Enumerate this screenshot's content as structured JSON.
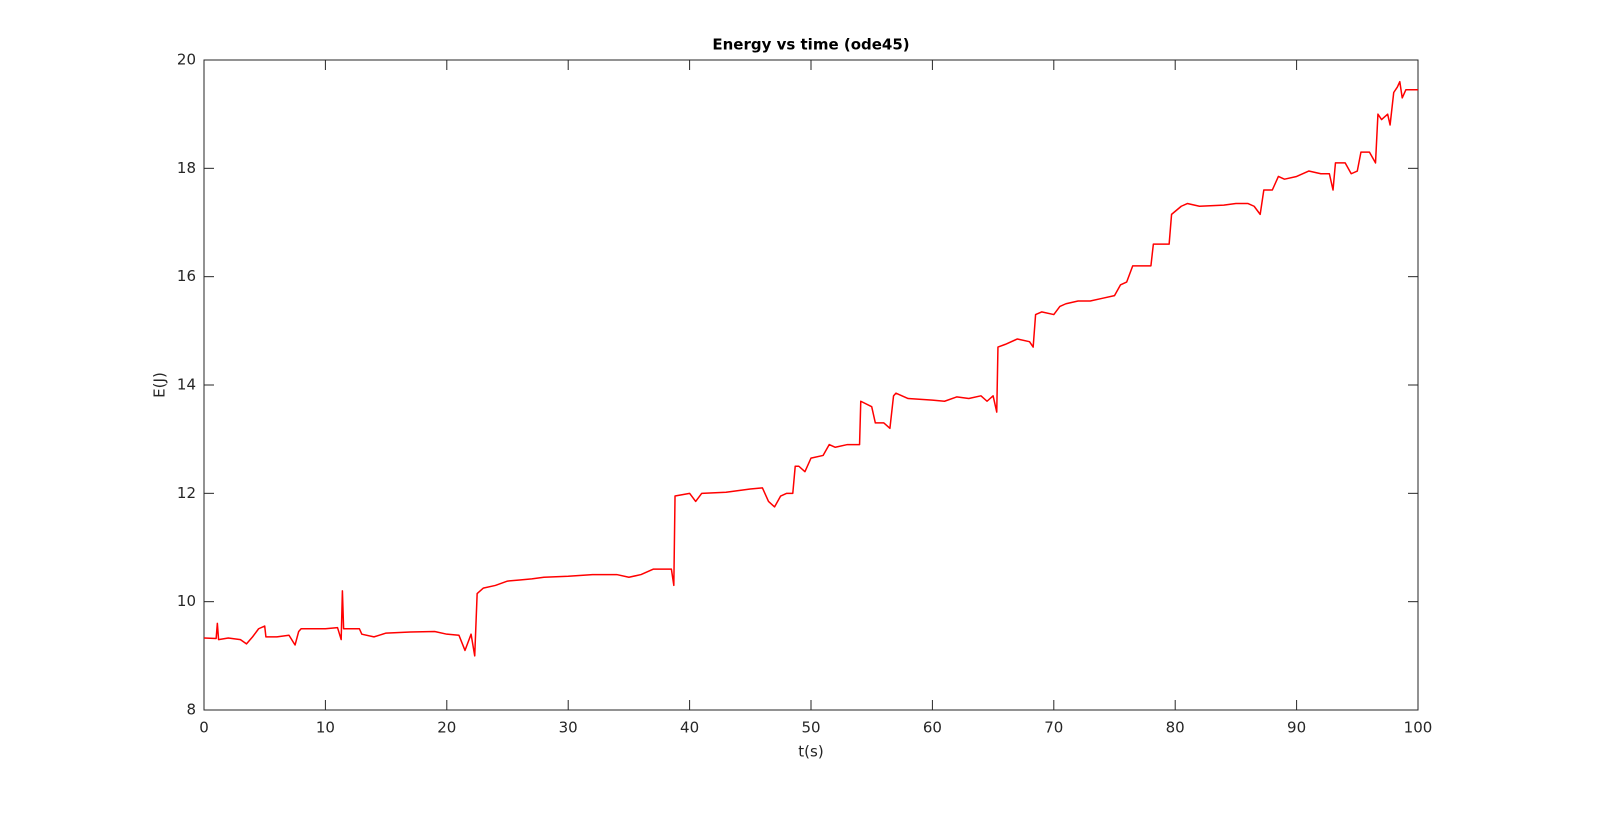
{
  "chart_data": {
    "type": "line",
    "title": "Energy vs time (ode45)",
    "xlabel": "t(s)",
    "ylabel": "E(J)",
    "color": "#ff0000",
    "x": [
      0,
      1,
      1.1,
      1.2,
      2,
      3,
      3.5,
      4,
      4.5,
      5,
      5.1,
      6,
      7,
      7.5,
      7.8,
      8,
      10,
      11,
      11.3,
      11.4,
      11.5,
      12,
      12.8,
      13,
      14,
      15,
      17,
      19,
      20,
      21,
      21.5,
      22,
      22.3,
      22.5,
      23,
      24,
      25,
      26,
      27,
      28,
      30,
      32,
      34,
      35,
      36,
      37,
      38.5,
      38.7,
      38.8,
      40,
      40.5,
      41,
      43,
      45,
      46,
      46.5,
      47,
      47.5,
      48,
      48.5,
      48.7,
      49,
      49.5,
      50,
      51,
      51.5,
      52,
      53,
      54,
      54.1,
      55,
      55.3,
      56,
      56.5,
      56.8,
      57,
      58,
      60,
      61,
      62,
      63,
      64,
      64.5,
      65,
      65.3,
      65.4,
      66,
      67,
      68,
      68.3,
      68.5,
      69,
      70,
      70.5,
      71,
      72,
      73,
      74,
      75,
      75.5,
      76,
      76.5,
      77.5,
      78,
      78.2,
      79,
      79.5,
      79.7,
      80.5,
      81,
      82,
      84,
      85,
      86,
      86.5,
      87,
      87.3,
      88,
      88.5,
      89,
      90,
      91,
      92,
      92.7,
      93,
      93.2,
      94,
      94.5,
      95,
      95.3,
      96,
      96.5,
      96.7,
      97,
      97.5,
      97.7,
      98,
      98.3,
      98.5,
      98.7,
      99,
      100
    ],
    "values": [
      9.33,
      9.32,
      9.6,
      9.3,
      9.33,
      9.3,
      9.22,
      9.35,
      9.5,
      9.55,
      9.35,
      9.35,
      9.38,
      9.2,
      9.45,
      9.5,
      9.5,
      9.52,
      9.3,
      10.2,
      9.5,
      9.5,
      9.5,
      9.4,
      9.35,
      9.42,
      9.44,
      9.45,
      9.4,
      9.38,
      9.1,
      9.4,
      9.0,
      10.15,
      10.25,
      10.3,
      10.38,
      10.4,
      10.42,
      10.45,
      10.47,
      10.5,
      10.5,
      10.45,
      10.5,
      10.6,
      10.6,
      10.3,
      11.95,
      12.0,
      11.85,
      12.0,
      12.02,
      12.08,
      12.1,
      11.85,
      11.75,
      11.95,
      12.0,
      12.0,
      12.5,
      12.5,
      12.4,
      12.65,
      12.7,
      12.9,
      12.85,
      12.9,
      12.9,
      13.7,
      13.6,
      13.3,
      13.3,
      13.2,
      13.8,
      13.85,
      13.75,
      13.72,
      13.7,
      13.78,
      13.75,
      13.8,
      13.7,
      13.8,
      13.5,
      14.7,
      14.75,
      14.85,
      14.8,
      14.7,
      15.3,
      15.35,
      15.3,
      15.45,
      15.5,
      15.55,
      15.55,
      15.6,
      15.65,
      15.85,
      15.9,
      16.2,
      16.2,
      16.2,
      16.6,
      16.6,
      16.6,
      17.15,
      17.3,
      17.35,
      17.3,
      17.32,
      17.35,
      17.35,
      17.3,
      17.15,
      17.6,
      17.6,
      17.85,
      17.8,
      17.85,
      17.95,
      17.9,
      17.9,
      17.6,
      18.1,
      18.1,
      17.9,
      17.95,
      18.3,
      18.3,
      18.1,
      19.0,
      18.9,
      19.0,
      18.8,
      19.4,
      19.5,
      19.6,
      19.3,
      19.45,
      19.45
    ],
    "xlim": [
      0,
      100
    ],
    "xticks": [
      0,
      10,
      20,
      30,
      40,
      50,
      60,
      70,
      80,
      90,
      100
    ],
    "ylim": [
      8,
      20
    ],
    "yticks": [
      8,
      10,
      12,
      14,
      16,
      18,
      20
    ]
  }
}
